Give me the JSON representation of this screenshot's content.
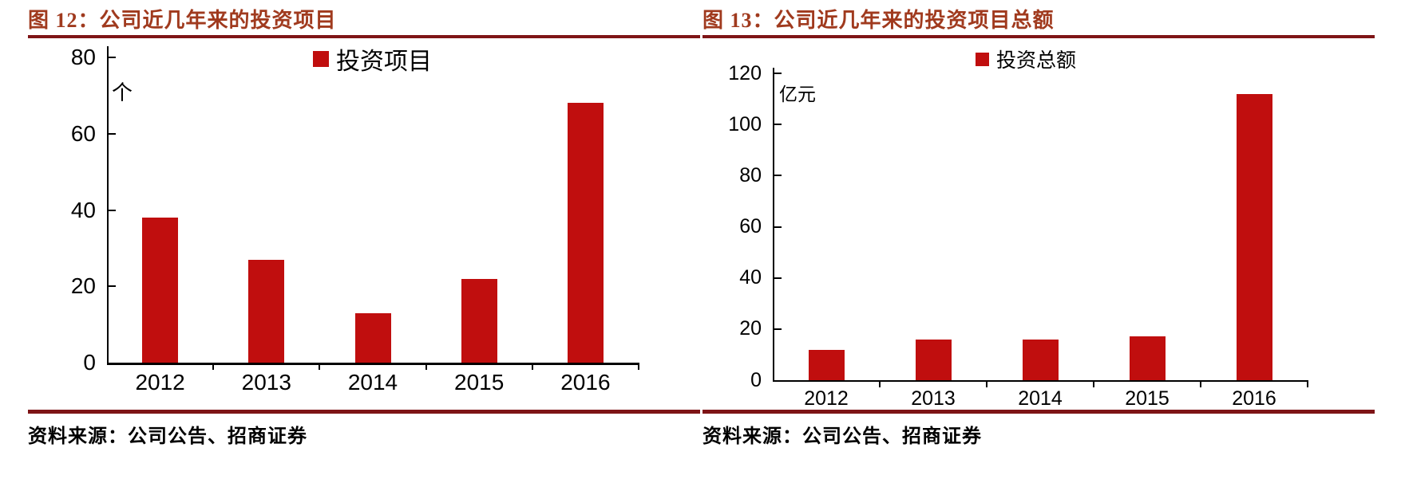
{
  "colors": {
    "bar": "#C00E0E",
    "title": "#A03A1E",
    "rule": "#7E1416",
    "axis": "#000000"
  },
  "chart_data": [
    {
      "type": "bar",
      "title": "图 12：公司近几年来的投资项目",
      "legend": [
        "投资项目"
      ],
      "legend_position": "top",
      "ylabel": "个",
      "categories": [
        "2012",
        "2013",
        "2014",
        "2015",
        "2016"
      ],
      "values": [
        38,
        27,
        13,
        22,
        68
      ],
      "ylim": [
        0,
        80
      ],
      "yticks": [
        0,
        20,
        40,
        60,
        80
      ],
      "grid": false,
      "source": "资料来源：公司公告、招商证券"
    },
    {
      "type": "bar",
      "title": "图 13：公司近几年来的投资项目总额",
      "legend": [
        "投资总额"
      ],
      "legend_position": "top",
      "ylabel": "亿元",
      "categories": [
        "2012",
        "2013",
        "2014",
        "2015",
        "2016"
      ],
      "values": [
        12,
        16,
        16,
        17,
        112
      ],
      "ylim": [
        0,
        120
      ],
      "yticks": [
        0,
        20,
        40,
        60,
        80,
        100,
        120
      ],
      "grid": false,
      "source": "资料来源：公司公告、招商证券"
    }
  ]
}
